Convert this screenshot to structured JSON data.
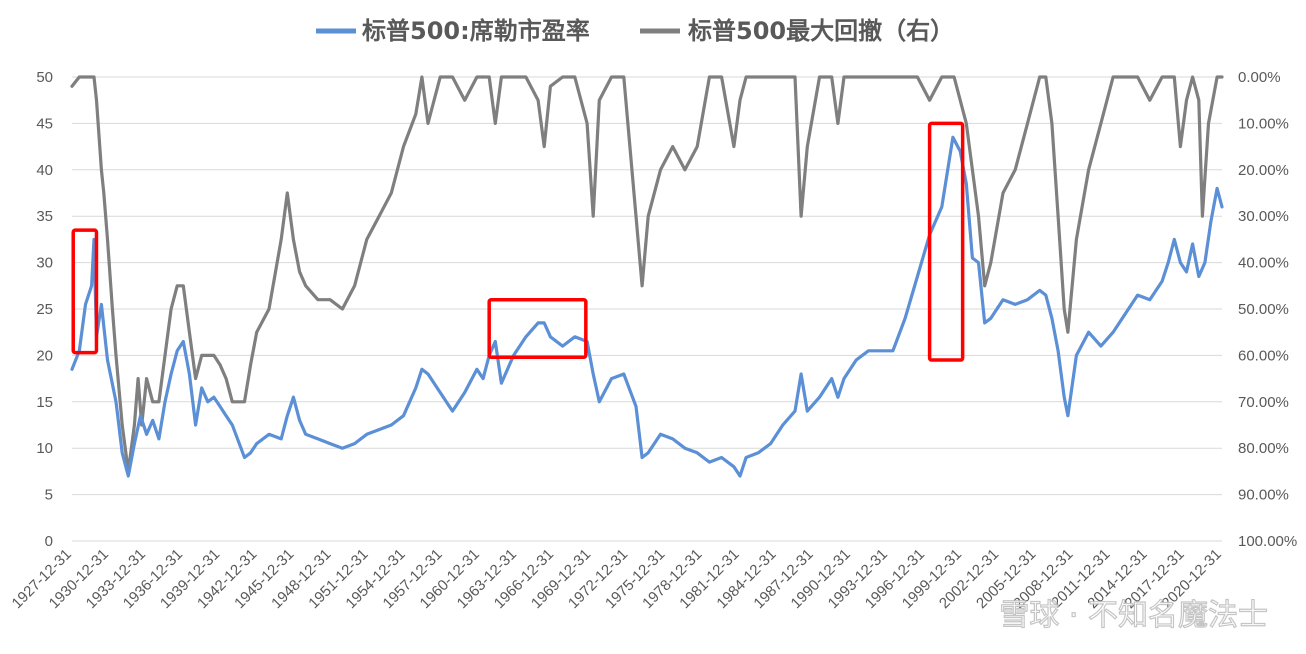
{
  "chart_data": {
    "type": "line",
    "legend_position": "top",
    "grid": true,
    "y_left": {
      "ylim": [
        0,
        50
      ],
      "ticks": [
        "0",
        "5",
        "10",
        "15",
        "20",
        "25",
        "30",
        "35",
        "40",
        "45",
        "50"
      ]
    },
    "y_right": {
      "ylim": [
        1.0,
        0.0
      ],
      "ticks": [
        "0.00%",
        "10.00%",
        "20.00%",
        "30.00%",
        "40.00%",
        "50.00%",
        "60.00%",
        "70.00%",
        "80.00%",
        "90.00%",
        "100.00%"
      ]
    },
    "x_tick_labels": [
      "1927-12-31",
      "1930-12-31",
      "1933-12-31",
      "1936-12-31",
      "1939-12-31",
      "1942-12-31",
      "1945-12-31",
      "1948-12-31",
      "1951-12-31",
      "1954-12-31",
      "1957-12-31",
      "1960-12-31",
      "1963-12-31",
      "1966-12-31",
      "1969-12-31",
      "1972-12-31",
      "1975-12-31",
      "1978-12-31",
      "1981-12-31",
      "1984-12-31",
      "1987-12-31",
      "1990-12-31",
      "1993-12-31",
      "1996-12-31",
      "1999-12-31",
      "2002-12-31",
      "2005-12-31",
      "2008-12-31",
      "2011-12-31",
      "2014-12-31",
      "2017-12-31",
      "2020-12-31"
    ],
    "x_range": [
      1927.9,
      2021.9
    ],
    "series": [
      {
        "name": "标普500:席勒市盈率",
        "axis": "left",
        "color": "#5B8FD6",
        "x": [
          1927.9,
          1928.5,
          1929.0,
          1929.5,
          1929.7,
          1929.9,
          1930.3,
          1930.8,
          1931.5,
          1932.0,
          1932.5,
          1933.0,
          1933.5,
          1934.0,
          1934.5,
          1935.0,
          1935.5,
          1936.0,
          1936.5,
          1937.0,
          1937.5,
          1938.0,
          1938.5,
          1939.0,
          1939.5,
          1940.0,
          1940.5,
          1941.0,
          1942.0,
          1942.5,
          1943.0,
          1944.0,
          1945.0,
          1945.5,
          1946.0,
          1946.5,
          1947.0,
          1948.0,
          1949.0,
          1950.0,
          1951.0,
          1952.0,
          1953.0,
          1954.0,
          1955.0,
          1956.0,
          1956.5,
          1957.0,
          1958.0,
          1959.0,
          1960.0,
          1961.0,
          1961.5,
          1962.0,
          1962.5,
          1963.0,
          1964.0,
          1965.0,
          1966.0,
          1966.5,
          1967.0,
          1968.0,
          1969.0,
          1970.0,
          1970.5,
          1971.0,
          1972.0,
          1973.0,
          1974.0,
          1974.5,
          1975.0,
          1976.0,
          1977.0,
          1978.0,
          1979.0,
          1980.0,
          1981.0,
          1982.0,
          1982.5,
          1983.0,
          1984.0,
          1985.0,
          1986.0,
          1987.0,
          1987.5,
          1988.0,
          1989.0,
          1990.0,
          1990.5,
          1991.0,
          1992.0,
          1993.0,
          1994.0,
          1995.0,
          1996.0,
          1997.0,
          1998.0,
          1999.0,
          1999.9,
          2000.5,
          2001.0,
          2001.5,
          2002.0,
          2002.5,
          2003.0,
          2004.0,
          2005.0,
          2006.0,
          2007.0,
          2007.5,
          2008.0,
          2008.5,
          2009.0,
          2009.3,
          2010.0,
          2011.0,
          2012.0,
          2013.0,
          2014.0,
          2015.0,
          2016.0,
          2017.0,
          2017.5,
          2018.0,
          2018.5,
          2019.0,
          2019.5,
          2020.0,
          2020.5,
          2021.0,
          2021.5,
          2021.9
        ],
        "values": [
          18.5,
          20.5,
          25.5,
          27.5,
          32.5,
          22.0,
          25.5,
          19.5,
          15.0,
          9.5,
          7.0,
          10.5,
          13.5,
          11.5,
          13.0,
          11.0,
          15.0,
          18.0,
          20.5,
          21.5,
          18.0,
          12.5,
          16.5,
          15.0,
          15.5,
          14.5,
          13.5,
          12.5,
          9.0,
          9.5,
          10.5,
          11.5,
          11.0,
          13.5,
          15.5,
          13.0,
          11.5,
          11.0,
          10.5,
          10.0,
          10.5,
          11.5,
          12.0,
          12.5,
          13.5,
          16.5,
          18.5,
          18.0,
          16.0,
          14.0,
          16.0,
          18.5,
          17.5,
          20.0,
          21.5,
          17.0,
          20.0,
          22.0,
          23.5,
          23.5,
          22.0,
          21.0,
          22.0,
          21.5,
          18.0,
          15.0,
          17.5,
          18.0,
          14.5,
          9.0,
          9.5,
          11.5,
          11.0,
          10.0,
          9.5,
          8.5,
          9.0,
          8.0,
          7.0,
          9.0,
          9.5,
          10.5,
          12.5,
          14.0,
          18.0,
          14.0,
          15.5,
          17.5,
          15.5,
          17.5,
          19.5,
          20.5,
          20.5,
          20.5,
          24.0,
          28.5,
          33.0,
          36.0,
          43.5,
          42.0,
          38.5,
          30.5,
          30.0,
          23.5,
          24.0,
          26.0,
          25.5,
          26.0,
          27.0,
          26.5,
          24.0,
          20.5,
          15.5,
          13.5,
          20.0,
          22.5,
          21.0,
          22.5,
          24.5,
          26.5,
          26.0,
          28.0,
          30.0,
          32.5,
          30.0,
          29.0,
          32.0,
          28.5,
          30.0,
          34.5,
          38.0,
          36.0
        ]
      },
      {
        "name": "标普500最大回撤（右）",
        "axis": "right",
        "color": "#7F7F7F",
        "x": [
          1927.9,
          1928.5,
          1929.0,
          1929.7,
          1929.9,
          1930.3,
          1930.5,
          1930.8,
          1931.2,
          1931.5,
          1932.0,
          1932.5,
          1933.0,
          1933.3,
          1933.6,
          1934.0,
          1934.5,
          1935.0,
          1935.5,
          1936.0,
          1936.5,
          1937.0,
          1937.5,
          1938.0,
          1938.5,
          1939.0,
          1939.5,
          1940.0,
          1940.5,
          1941.0,
          1942.0,
          1942.5,
          1943.0,
          1944.0,
          1945.0,
          1945.5,
          1946.0,
          1946.5,
          1947.0,
          1948.0,
          1949.0,
          1950.0,
          1951.0,
          1952.0,
          1953.0,
          1954.0,
          1955.0,
          1956.0,
          1956.5,
          1957.0,
          1958.0,
          1959.0,
          1960.0,
          1961.0,
          1962.0,
          1962.5,
          1963.0,
          1964.0,
          1965.0,
          1966.0,
          1966.5,
          1967.0,
          1968.0,
          1969.0,
          1970.0,
          1970.5,
          1971.0,
          1972.0,
          1973.0,
          1974.0,
          1974.5,
          1975.0,
          1976.0,
          1977.0,
          1978.0,
          1979.0,
          1980.0,
          1981.0,
          1982.0,
          1982.5,
          1983.0,
          1984.0,
          1985.0,
          1986.0,
          1987.0,
          1987.5,
          1988.0,
          1989.0,
          1990.0,
          1990.5,
          1991.0,
          1992.0,
          1993.0,
          1994.0,
          1995.0,
          1996.0,
          1997.0,
          1998.0,
          1999.0,
          2000.0,
          2001.0,
          2001.5,
          2002.0,
          2002.5,
          2003.0,
          2004.0,
          2005.0,
          2006.0,
          2007.0,
          2007.5,
          2008.0,
          2008.5,
          2009.0,
          2009.3,
          2010.0,
          2011.0,
          2012.0,
          2013.0,
          2014.0,
          2015.0,
          2016.0,
          2017.0,
          2018.0,
          2018.5,
          2019.0,
          2019.5,
          2020.0,
          2020.3,
          2020.8,
          2021.5,
          2021.9
        ],
        "values": [
          0.02,
          0.0,
          0.0,
          0.0,
          0.05,
          0.2,
          0.25,
          0.35,
          0.5,
          0.6,
          0.75,
          0.85,
          0.75,
          0.65,
          0.75,
          0.65,
          0.7,
          0.7,
          0.6,
          0.5,
          0.45,
          0.45,
          0.55,
          0.65,
          0.6,
          0.6,
          0.6,
          0.62,
          0.65,
          0.7,
          0.7,
          0.62,
          0.55,
          0.5,
          0.35,
          0.25,
          0.35,
          0.42,
          0.45,
          0.48,
          0.48,
          0.5,
          0.45,
          0.35,
          0.3,
          0.25,
          0.15,
          0.08,
          0.0,
          0.1,
          0.0,
          0.0,
          0.05,
          0.0,
          0.0,
          0.1,
          0.0,
          0.0,
          0.0,
          0.05,
          0.15,
          0.02,
          0.0,
          0.0,
          0.1,
          0.3,
          0.05,
          0.0,
          0.0,
          0.3,
          0.45,
          0.3,
          0.2,
          0.15,
          0.2,
          0.15,
          0.0,
          0.0,
          0.15,
          0.05,
          0.0,
          0.0,
          0.0,
          0.0,
          0.0,
          0.3,
          0.15,
          0.0,
          0.0,
          0.1,
          0.0,
          0.0,
          0.0,
          0.0,
          0.0,
          0.0,
          0.0,
          0.05,
          0.0,
          0.0,
          0.1,
          0.2,
          0.3,
          0.45,
          0.4,
          0.25,
          0.2,
          0.1,
          0.0,
          0.0,
          0.1,
          0.3,
          0.5,
          0.55,
          0.35,
          0.2,
          0.1,
          0.0,
          0.0,
          0.0,
          0.05,
          0.0,
          0.0,
          0.15,
          0.05,
          0.0,
          0.05,
          0.3,
          0.1,
          0.0,
          0.0
        ]
      }
    ],
    "highlight_boxes": [
      {
        "x_from": 1928.0,
        "x_to": 1929.9,
        "y_from": 20.3,
        "y_to": 33.5
      },
      {
        "x_from": 1962.0,
        "x_to": 1969.9,
        "y_from": 19.8,
        "y_to": 26.0
      },
      {
        "x_from": 1998.0,
        "x_to": 2000.7,
        "y_from": 19.5,
        "y_to": 45.0
      }
    ],
    "highlight_color": "#FF0000"
  },
  "watermark": "雪球 · 不知名魔法士"
}
